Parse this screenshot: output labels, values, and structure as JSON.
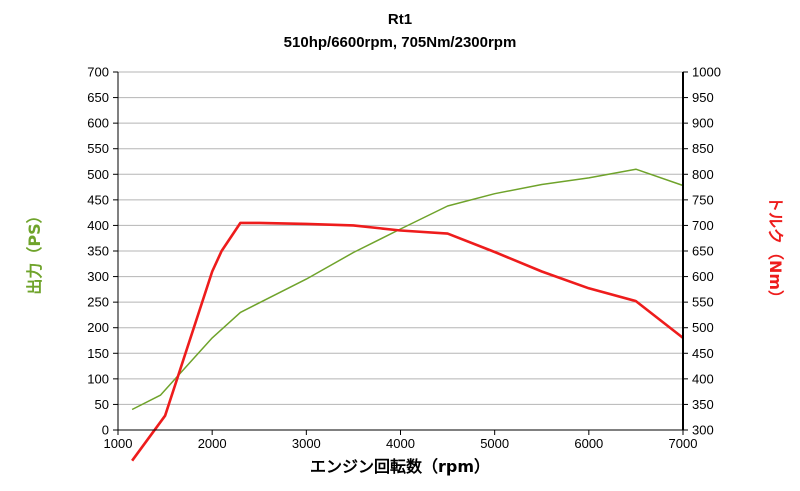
{
  "chart_data": {
    "type": "line",
    "title": "Rt1",
    "subtitle": "510hp/6600rpm, 705Nm/2300rpm",
    "xlabel": "エンジン回転数（rpm）",
    "ylabel_left": "出力（PS）",
    "ylabel_right": "トルク（Nm）",
    "xlim": [
      1000,
      7000
    ],
    "ylim_left": [
      0,
      700
    ],
    "ylim_right": [
      300,
      1000
    ],
    "x_ticks": [
      1000,
      2000,
      3000,
      4000,
      5000,
      6000,
      7000
    ],
    "y_ticks_left": [
      0,
      50,
      100,
      150,
      200,
      250,
      300,
      350,
      400,
      450,
      500,
      550,
      600,
      650,
      700
    ],
    "y_ticks_right": [
      300,
      350,
      400,
      450,
      500,
      550,
      600,
      650,
      700,
      750,
      800,
      850,
      900,
      950,
      1000
    ],
    "grid": "horizontal",
    "colors": {
      "power": "#6fa32b",
      "torque": "#ee1c1c",
      "left_axis_label": "#6fa32b",
      "right_axis_label": "#ee1c1c"
    },
    "series": [
      {
        "axis": "left",
        "x": [
          1150,
          1450,
          2000,
          2300,
          3000,
          3500,
          4000,
          4500,
          5000,
          5500,
          6000,
          6500,
          7000
        ],
        "values": [
          40,
          68,
          180,
          230,
          295,
          347,
          393,
          438,
          462,
          480,
          493,
          510,
          478
        ]
      },
      {
        "axis": "right",
        "x": [
          1150,
          1500,
          2000,
          2100,
          2300,
          2500,
          3000,
          3500,
          4000,
          4500,
          5000,
          5500,
          6000,
          6500,
          7000
        ],
        "values": [
          240,
          328,
          610,
          650,
          705,
          705,
          703,
          700,
          690,
          684,
          648,
          610,
          577,
          552,
          480
        ]
      }
    ]
  }
}
